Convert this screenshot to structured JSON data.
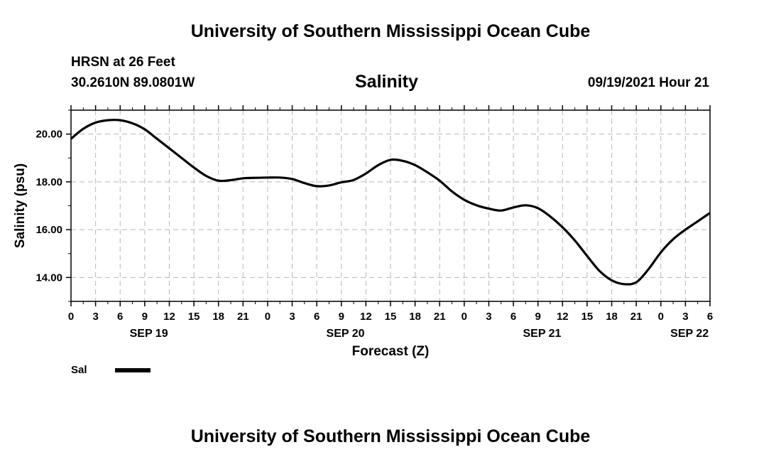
{
  "header": {
    "title": "University of Southern Mississippi Ocean Cube",
    "station": "HRSN at 26 Feet",
    "coordinates": "30.2610N  89.0801W",
    "timestamp": "09/19/2021 Hour 21"
  },
  "footer": {
    "title": "University of Southern Mississippi Ocean Cube"
  },
  "chart_data": {
    "type": "line",
    "title": "Salinity",
    "xlabel": "Forecast (Z)",
    "ylabel": "Salinity (psu)",
    "xlim": [
      0,
      78
    ],
    "ylim": [
      13,
      21
    ],
    "grid": true,
    "x_ticks": [
      0,
      3,
      6,
      9,
      12,
      15,
      18,
      21,
      24,
      27,
      30,
      33,
      36,
      39,
      42,
      45,
      48,
      51,
      54,
      57,
      60,
      63,
      66,
      69,
      72,
      75,
      78
    ],
    "x_tick_labels": [
      "0",
      "3",
      "6",
      "9",
      "12",
      "15",
      "18",
      "21",
      "0",
      "3",
      "6",
      "9",
      "12",
      "15",
      "18",
      "21",
      "0",
      "3",
      "6",
      "9",
      "12",
      "15",
      "18",
      "21",
      "0",
      "3",
      "6"
    ],
    "y_ticks": [
      14,
      16,
      18,
      20
    ],
    "y_tick_labels": [
      "14.00",
      "16.00",
      "18.00",
      "20.00"
    ],
    "date_labels": [
      {
        "x": 9.5,
        "label": "SEP 19"
      },
      {
        "x": 33.5,
        "label": "SEP 20"
      },
      {
        "x": 57.5,
        "label": "SEP 21"
      },
      {
        "x": 75.5,
        "label": "SEP 22"
      }
    ],
    "legend": [
      {
        "name": "Sal",
        "position": "bottom-left"
      }
    ],
    "series": [
      {
        "name": "Sal",
        "color": "#000000",
        "x": [
          0,
          1.5,
          3,
          4.5,
          6,
          7.5,
          9,
          10.5,
          12,
          13.5,
          15,
          16.5,
          18,
          19.5,
          21,
          22.5,
          24,
          25.5,
          27,
          28.5,
          30,
          31.5,
          33,
          34.5,
          36,
          37.5,
          39,
          40.5,
          42,
          43.5,
          45,
          46.5,
          48,
          49.5,
          51,
          52.5,
          54,
          55.5,
          57,
          58.5,
          60,
          61.5,
          63,
          64.5,
          66,
          67.5,
          69,
          70.5,
          72,
          73.5,
          75,
          76.5,
          78
        ],
        "values": [
          19.8,
          20.22,
          20.48,
          20.58,
          20.58,
          20.45,
          20.2,
          19.8,
          19.4,
          19.0,
          18.6,
          18.25,
          18.05,
          18.07,
          18.15,
          18.17,
          18.18,
          18.18,
          18.12,
          17.95,
          17.82,
          17.85,
          17.98,
          18.08,
          18.35,
          18.7,
          18.92,
          18.88,
          18.7,
          18.4,
          18.05,
          17.6,
          17.25,
          17.02,
          16.88,
          16.8,
          16.93,
          17.02,
          16.9,
          16.55,
          16.1,
          15.55,
          14.9,
          14.28,
          13.88,
          13.72,
          13.8,
          14.35,
          15.05,
          15.6,
          16.0,
          16.35,
          16.7
        ]
      }
    ]
  }
}
